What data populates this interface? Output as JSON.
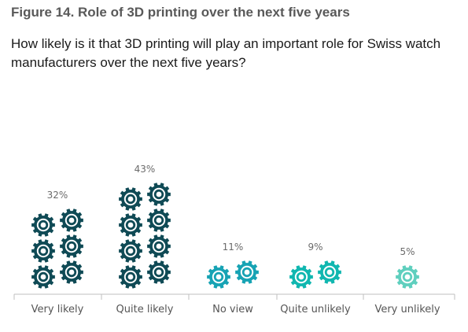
{
  "figure_title": "Figure 14. Role of 3D printing over the next five years",
  "question": "How likely is it that 3D printing will play an important role for Swiss watch manufacturers over the next five years?",
  "chart_data": {
    "type": "bar",
    "style": "pictograph (stacked gear icons)",
    "icon": "gear-icon",
    "title": "",
    "categories": [
      "Very likely",
      "Quite likely",
      "No view",
      "Quite unlikely",
      "Very unlikely"
    ],
    "values": [
      32,
      43,
      11,
      9,
      5
    ],
    "value_labels": [
      "32%",
      "43%",
      "11%",
      "9%",
      "5%"
    ],
    "unit": "%",
    "colors": [
      "#0f4a55",
      "#0f4a55",
      "#17a3b4",
      "#10b7b0",
      "#5fcfbe"
    ],
    "ylim": [
      0,
      50
    ],
    "grid": false,
    "legend": "none"
  }
}
